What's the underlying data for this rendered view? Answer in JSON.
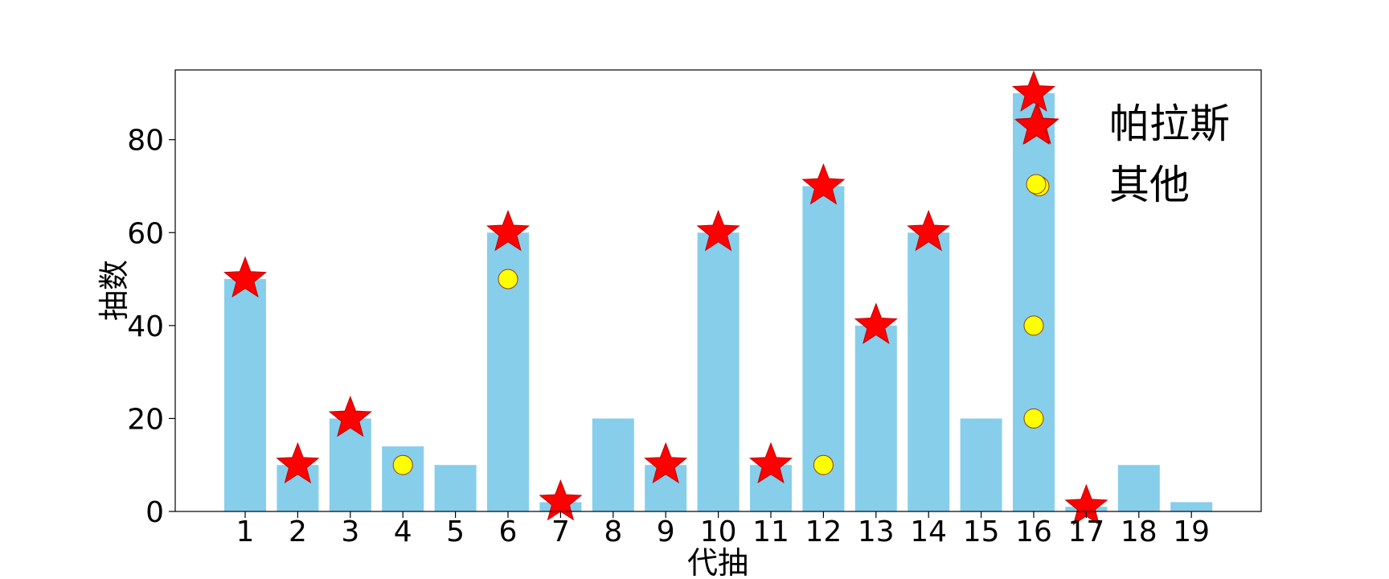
{
  "chart_data": {
    "type": "bar",
    "title": "",
    "xlabel": "代抽",
    "ylabel": "抽数",
    "categories": [
      "1",
      "2",
      "3",
      "4",
      "5",
      "6",
      "7",
      "8",
      "9",
      "10",
      "11",
      "12",
      "13",
      "14",
      "15",
      "16",
      "17",
      "18",
      "19"
    ],
    "values": [
      50,
      10,
      20,
      14,
      10,
      60,
      2,
      20,
      10,
      60,
      10,
      70,
      40,
      60,
      20,
      90,
      1,
      10,
      2
    ],
    "ylim": [
      0,
      95
    ],
    "yticks": [
      0,
      20,
      40,
      60,
      80
    ],
    "grid": false,
    "legend_position": "top-right",
    "bar_color": "#87CEEB",
    "series": [
      {
        "name": "帕拉斯",
        "marker": "star",
        "color": "#FF0000",
        "points": [
          {
            "x": "1",
            "y": 50
          },
          {
            "x": "2",
            "y": 10
          },
          {
            "x": "3",
            "y": 20
          },
          {
            "x": "6",
            "y": 60
          },
          {
            "x": "7",
            "y": 2
          },
          {
            "x": "9",
            "y": 10
          },
          {
            "x": "10",
            "y": 60
          },
          {
            "x": "11",
            "y": 10
          },
          {
            "x": "12",
            "y": 70
          },
          {
            "x": "13",
            "y": 40
          },
          {
            "x": "14",
            "y": 60
          },
          {
            "x": "16",
            "y": 90
          },
          {
            "x": "16",
            "y": 83
          },
          {
            "x": "17",
            "y": 1
          }
        ]
      },
      {
        "name": "其他",
        "marker": "circle",
        "color": "#FFFF00",
        "points": [
          {
            "x": "4",
            "y": 10
          },
          {
            "x": "6",
            "y": 50
          },
          {
            "x": "12",
            "y": 10
          },
          {
            "x": "16",
            "y": 70
          },
          {
            "x": "16",
            "y": 40
          },
          {
            "x": "16",
            "y": 20
          }
        ]
      }
    ]
  }
}
